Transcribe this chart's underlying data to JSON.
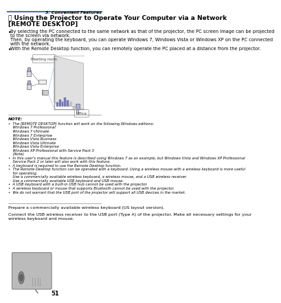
{
  "page_num": "51",
  "header_right": "3. Convenient Features",
  "title_line1": " Using the Projector to Operate Your Computer via a Network",
  "title_line2": "[REMOTE DESKTOP]",
  "bullet1_line1": "By selecting the PC connected to the same network as that of the projector, the PC screen image can be projected",
  "bullet1_line2": "to the screen via network.",
  "bullet1_line3": "Then, by operating the keyboard, you can operate Windows 7, Windows Vista or Windows XP on the PC connected",
  "bullet1_line4": "with the network.",
  "bullet2": "With the Remote Desktop function, you can remotely operate the PC placed at a distance from the projector.",
  "note_header": "NOTE:",
  "note_lines": [
    "•  The [REMOTE DESKTOP] function will work on the following Windows editions:",
    "    Windows 7 Professional",
    "    Windows 7 Ultimate",
    "    Windows 7 Enterprise",
    "    Windows Vista Business",
    "    Windows Vista Ultimate",
    "    Windows Vista Enterprise",
    "    Windows XP Professional with Service Pack 3",
    "    (Note)",
    "•  In this user’s manual this feature is described using Windows 7 as an example, but Windows Vista and Windows XP Professional",
    "    Service Pack 2 or later will also work with this feature.",
    "•  A keyboard is required to use the Remote Desktop function.",
    "•  The Remote Desktop function can be operated with a keyboard. Using a wireless mouse with a wireless keyboard is more useful",
    "    for operating.",
    "    Use a commercially available wireless keyboard, a wireless mouse, and a USB wireless receiver.",
    "    Use a commercially available USB keyboard and USB mouse.",
    "•  A USB keyboard with a built-in USB hub cannot be used with the projector.",
    "•  A wireless keyboard or mouse that supports Bluetooth cannot be used with the projector.",
    "•  We do not warrant that the USB port of the projector will support all USB devices in the market."
  ],
  "prepare_text": "Prepare a commercially available wireless keyboard (US layout version).",
  "connect_text1": "Connect the USB wireless receiver to the USB port (Type A) of the projector. Make all necessary settings for your",
  "connect_text2": "wireless keyboard and mouse.",
  "bg_color": "#ffffff",
  "header_line_color": "#4472c4",
  "text_color": "#000000",
  "note_text_color": "#000000"
}
